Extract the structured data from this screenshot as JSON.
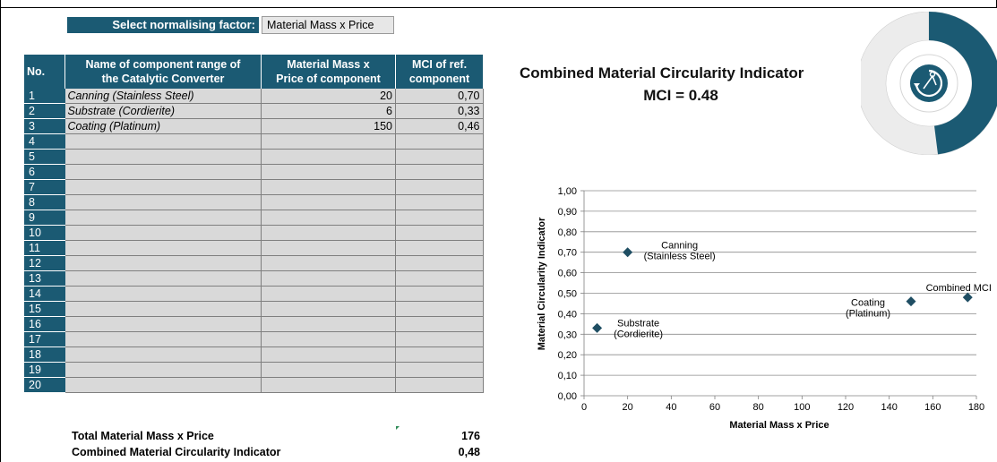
{
  "normalising": {
    "label": "Select normalising factor:",
    "value": "Material Mass x Price"
  },
  "table": {
    "headers": {
      "no": "No.",
      "name_l1": "Name of component range of",
      "name_l2": "the Catalytic Converter",
      "mass_l1": "Material Mass x",
      "mass_l2": "Price of component",
      "mci_l1": "MCI of ref.",
      "mci_l2": "component"
    },
    "rows": [
      {
        "no": "1",
        "name": "Canning (Stainless Steel)",
        "value": "20",
        "mci": "0,70"
      },
      {
        "no": "2",
        "name": "Substrate (Cordierite)",
        "value": "6",
        "mci": "0,33"
      },
      {
        "no": "3",
        "name": "Coating (Platinum)",
        "value": "150",
        "mci": "0,46"
      },
      {
        "no": "4",
        "name": "",
        "value": "",
        "mci": ""
      },
      {
        "no": "5",
        "name": "",
        "value": "",
        "mci": ""
      },
      {
        "no": "6",
        "name": "",
        "value": "",
        "mci": ""
      },
      {
        "no": "7",
        "name": "",
        "value": "",
        "mci": ""
      },
      {
        "no": "8",
        "name": "",
        "value": "",
        "mci": ""
      },
      {
        "no": "9",
        "name": "",
        "value": "",
        "mci": ""
      },
      {
        "no": "10",
        "name": "",
        "value": "",
        "mci": ""
      },
      {
        "no": "11",
        "name": "",
        "value": "",
        "mci": ""
      },
      {
        "no": "12",
        "name": "",
        "value": "",
        "mci": ""
      },
      {
        "no": "13",
        "name": "",
        "value": "",
        "mci": ""
      },
      {
        "no": "14",
        "name": "",
        "value": "",
        "mci": ""
      },
      {
        "no": "15",
        "name": "",
        "value": "",
        "mci": ""
      },
      {
        "no": "16",
        "name": "",
        "value": "",
        "mci": ""
      },
      {
        "no": "17",
        "name": "",
        "value": "",
        "mci": ""
      },
      {
        "no": "18",
        "name": "",
        "value": "",
        "mci": ""
      },
      {
        "no": "19",
        "name": "",
        "value": "",
        "mci": ""
      },
      {
        "no": "20",
        "name": "",
        "value": "",
        "mci": ""
      }
    ]
  },
  "totals": {
    "total_label": "Total Material Mass x Price",
    "total_value": "176",
    "combined_label": "Combined Material Circularity Indicator",
    "combined_value": "0,48"
  },
  "summary": {
    "title": "Combined Material Circularity Indicator",
    "mci_text": "MCI = 0.48",
    "mci_value": 0.48,
    "accent_color": "#1b5a73",
    "donut_icon": "circular-economy-icon"
  },
  "chart_data": {
    "type": "scatter",
    "xlabel": "Material Mass x Price",
    "ylabel": "Material Circularity Indicator",
    "xlim": [
      0,
      180
    ],
    "ylim": [
      0,
      1
    ],
    "x_ticks": [
      "0",
      "20",
      "40",
      "60",
      "80",
      "100",
      "120",
      "140",
      "160",
      "180"
    ],
    "y_ticks": [
      "0,00",
      "0,10",
      "0,20",
      "0,30",
      "0,40",
      "0,50",
      "0,60",
      "0,70",
      "0,80",
      "0,90",
      "1,00"
    ],
    "grid": "horizontal",
    "marker_color": "#1f4e63",
    "points": [
      {
        "x": 20,
        "y": 0.7,
        "label_l1": "Canning",
        "label_l2": "(Stainless Steel)",
        "pos": "right"
      },
      {
        "x": 6,
        "y": 0.33,
        "label_l1": "Substrate",
        "label_l2": "(Cordierite)",
        "pos": "right"
      },
      {
        "x": 150,
        "y": 0.46,
        "label_l1": "Coating",
        "label_l2": "(Platinum)",
        "pos": "left"
      },
      {
        "x": 176,
        "y": 0.48,
        "label_l1": "Combined MCI",
        "label_l2": "",
        "pos": "above"
      }
    ]
  }
}
